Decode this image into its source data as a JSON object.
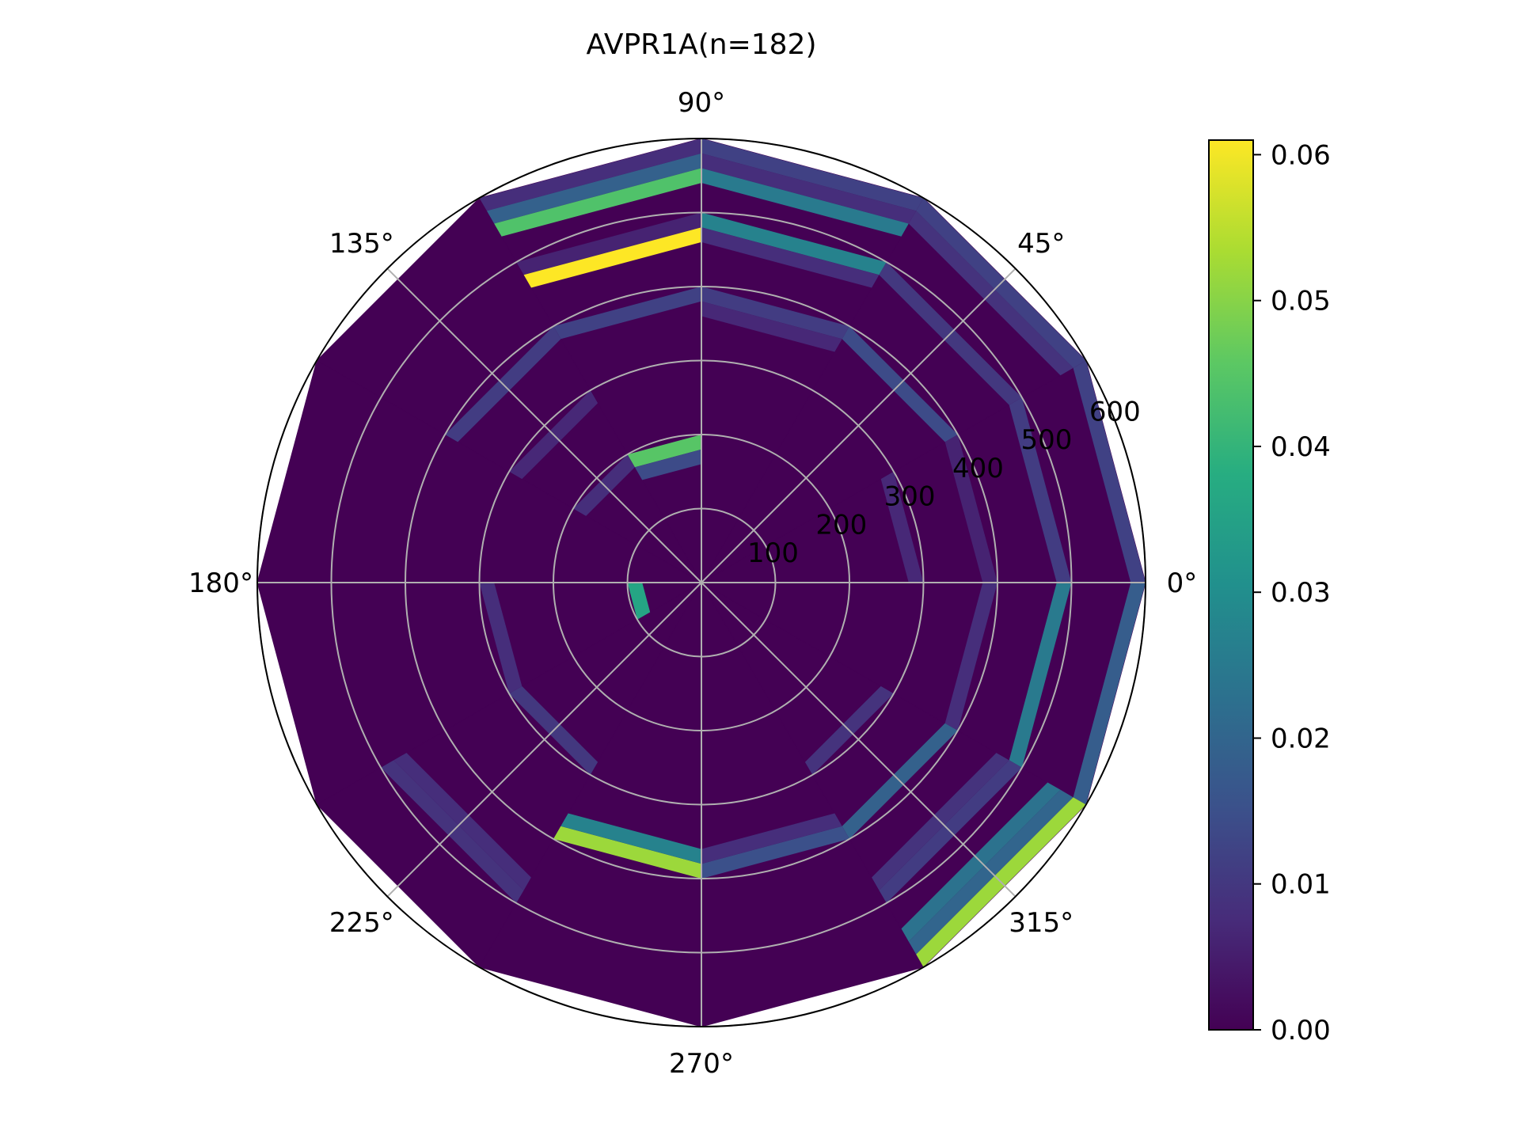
{
  "chart_data": {
    "type": "polar-heatmap",
    "title": "AVPR1A(n=182)",
    "theta_tick_labels": [
      "0°",
      "45°",
      "90°",
      "135°",
      "180°",
      "225°",
      "270°",
      "315°"
    ],
    "r_tick_labels": [
      "100",
      "200",
      "300",
      "400",
      "500",
      "600"
    ],
    "r_ticks": [
      100,
      200,
      300,
      400,
      500,
      600
    ],
    "rlim": [
      0,
      600
    ],
    "theta_bin_width_deg": 30,
    "r_bin_width": 100,
    "cell_fill_fraction": 0.2,
    "background_value": 0.0,
    "colorbar": {
      "min": 0.0,
      "max": 0.061,
      "tick_values": [
        0.0,
        0.01,
        0.02,
        0.03,
        0.04,
        0.05,
        0.06
      ],
      "tick_labels": [
        "0.00",
        "0.01",
        "0.02",
        "0.03",
        "0.04",
        "0.05",
        "0.06"
      ],
      "colormap": "viridis"
    },
    "cells": [
      {
        "theta": [
          90,
          120
        ],
        "r": [
          500,
          600
        ],
        "values": [
          0.008,
          0.019,
          0.044
        ]
      },
      {
        "theta": [
          90,
          120
        ],
        "r": [
          400,
          500
        ],
        "values": [
          0.006,
          0.061
        ]
      },
      {
        "theta": [
          90,
          120
        ],
        "r": [
          300,
          400
        ],
        "values": [
          0.012
        ]
      },
      {
        "theta": [
          90,
          120
        ],
        "r": [
          100,
          200
        ],
        "values": [
          0.045,
          0.014
        ]
      },
      {
        "theta": [
          120,
          150
        ],
        "r": [
          300,
          400
        ],
        "values": [
          0.011
        ]
      },
      {
        "theta": [
          120,
          150
        ],
        "r": [
          200,
          300
        ],
        "values": [
          0.007
        ]
      },
      {
        "theta": [
          120,
          150
        ],
        "r": [
          100,
          200
        ],
        "values": [
          0.008
        ]
      },
      {
        "theta": [
          60,
          90
        ],
        "r": [
          500,
          600
        ],
        "values": [
          0.012,
          0.008,
          0.025
        ]
      },
      {
        "theta": [
          60,
          90
        ],
        "r": [
          400,
          500
        ],
        "values": [
          0.027,
          0.008
        ]
      },
      {
        "theta": [
          60,
          90
        ],
        "r": [
          300,
          400
        ],
        "values": [
          0.011,
          0.007
        ]
      },
      {
        "theta": [
          30,
          60
        ],
        "r": [
          500,
          600
        ],
        "values": [
          0.012,
          0.009
        ]
      },
      {
        "theta": [
          30,
          60
        ],
        "r": [
          400,
          500
        ],
        "values": [
          0.01
        ]
      },
      {
        "theta": [
          30,
          60
        ],
        "r": [
          300,
          400
        ],
        "values": [
          0.014
        ]
      },
      {
        "theta": [
          0,
          30
        ],
        "r": [
          500,
          600
        ],
        "values": [
          0.012
        ]
      },
      {
        "theta": [
          0,
          30
        ],
        "r": [
          400,
          500
        ],
        "values": [
          0.011
        ]
      },
      {
        "theta": [
          0,
          30
        ],
        "r": [
          300,
          400
        ],
        "values": [
          0.006
        ]
      },
      {
        "theta": [
          0,
          30
        ],
        "r": [
          200,
          300
        ],
        "values": [
          0.007
        ]
      },
      {
        "theta": [
          330,
          360
        ],
        "r": [
          500,
          600
        ],
        "values": [
          0.018
        ]
      },
      {
        "theta": [
          330,
          360
        ],
        "r": [
          400,
          500
        ],
        "values": [
          0.025
        ]
      },
      {
        "theta": [
          330,
          360
        ],
        "r": [
          300,
          400
        ],
        "values": [
          0.008
        ]
      },
      {
        "theta": [
          300,
          330
        ],
        "r": [
          500,
          600
        ],
        "values": [
          0.052,
          0.02,
          0.023
        ]
      },
      {
        "theta": [
          300,
          330
        ],
        "r": [
          400,
          500
        ],
        "values": [
          0.011,
          0.009
        ]
      },
      {
        "theta": [
          300,
          330
        ],
        "r": [
          300,
          400
        ],
        "values": [
          0.019
        ]
      },
      {
        "theta": [
          300,
          330
        ],
        "r": [
          200,
          300
        ],
        "values": [
          0.009
        ]
      },
      {
        "theta": [
          270,
          300
        ],
        "r": [
          300,
          400
        ],
        "values": [
          0.015,
          0.008
        ]
      },
      {
        "theta": [
          240,
          270
        ],
        "r": [
          300,
          400
        ],
        "values": [
          0.052,
          0.027
        ]
      },
      {
        "theta": [
          210,
          240
        ],
        "r": [
          400,
          500
        ],
        "values": [
          0.009,
          0.008
        ]
      },
      {
        "theta": [
          210,
          240
        ],
        "r": [
          200,
          300
        ],
        "values": [
          0.01
        ]
      },
      {
        "theta": [
          180,
          210
        ],
        "r": [
          200,
          300
        ],
        "values": [
          0.008
        ]
      },
      {
        "theta": [
          180,
          210
        ],
        "r": [
          0,
          100
        ],
        "values": [
          0.036
        ]
      }
    ]
  }
}
